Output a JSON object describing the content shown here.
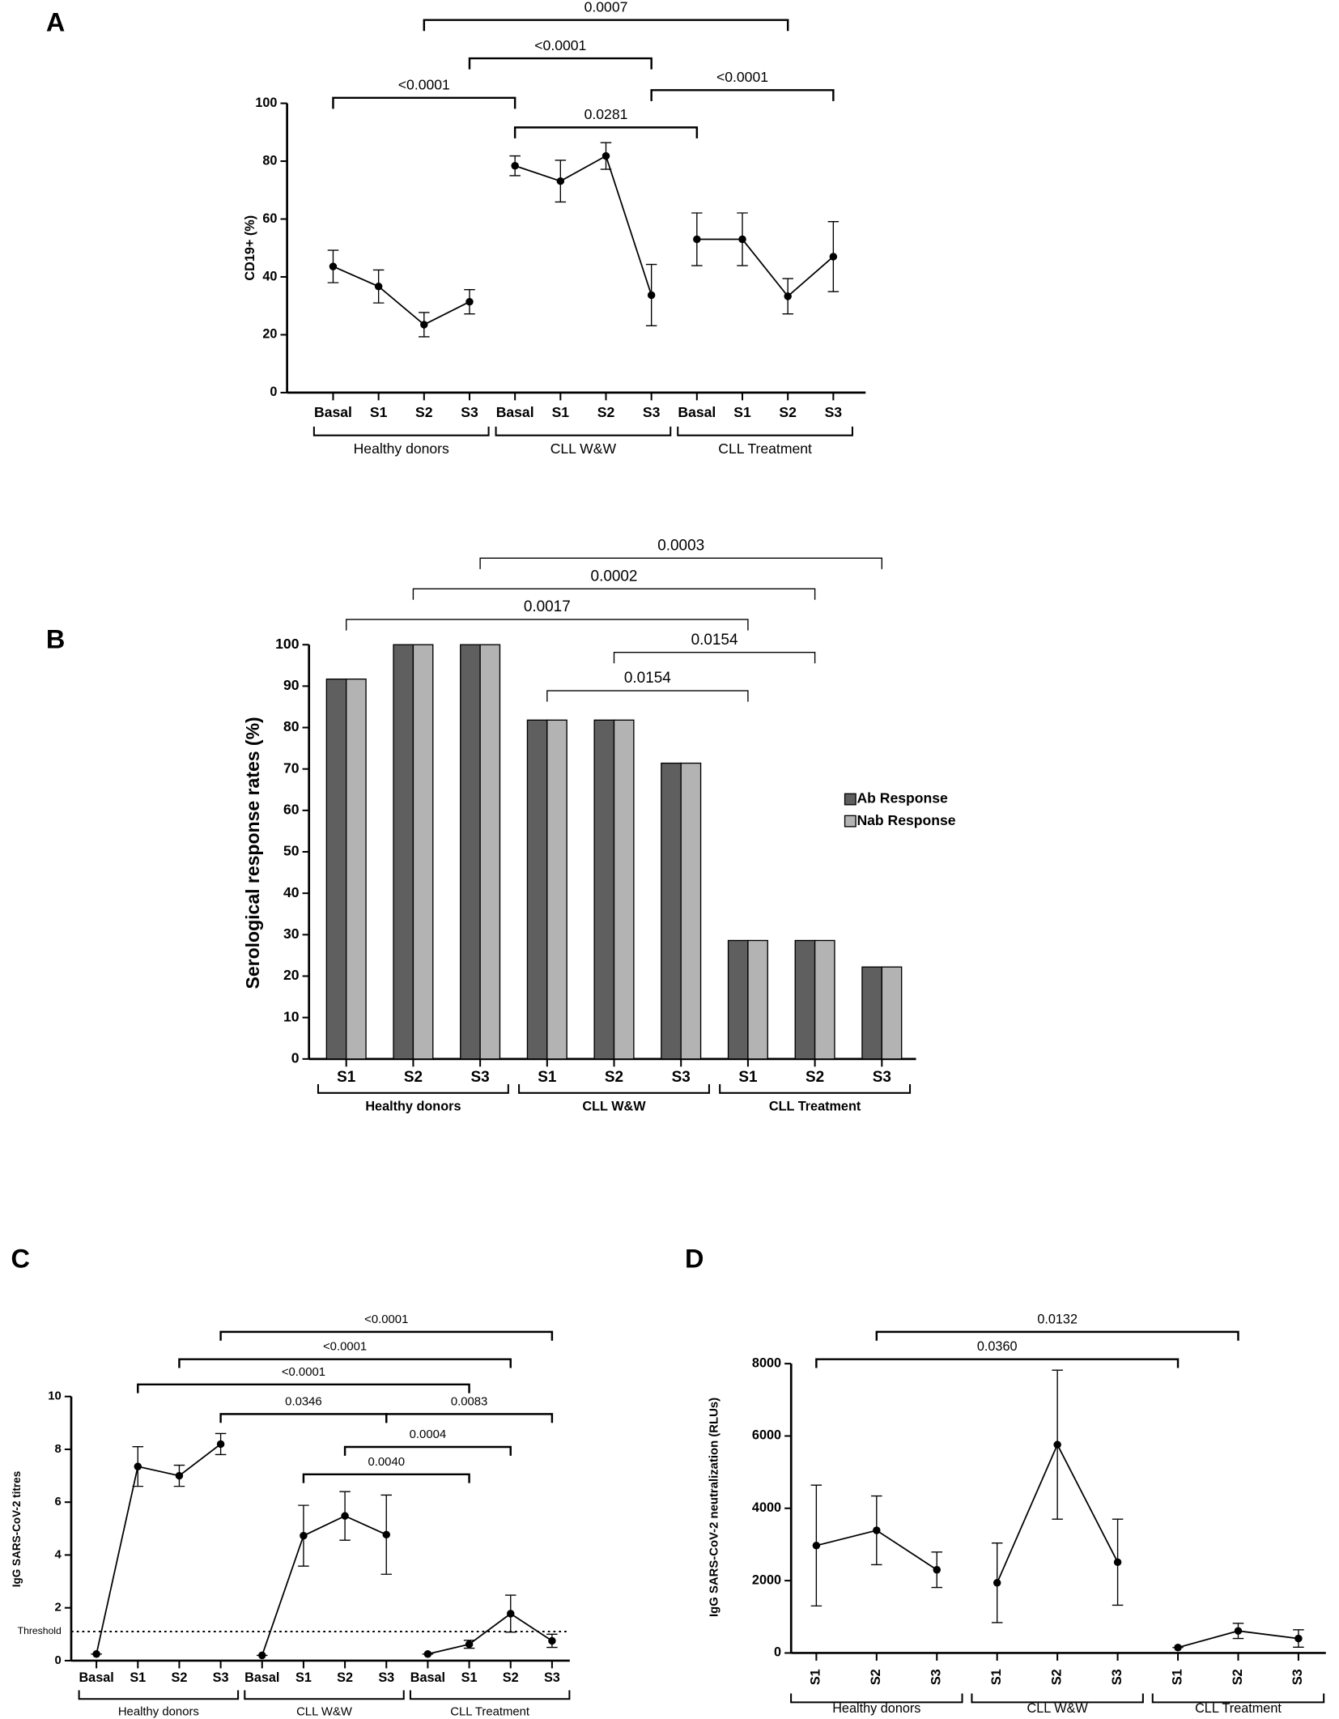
{
  "chart_data": [
    {
      "type": "line",
      "panel": "A",
      "ylabel": "CD19+ (%)",
      "ylim": [
        0,
        100
      ],
      "yticks": [
        0,
        20,
        40,
        60,
        80,
        100
      ],
      "color": "#000000",
      "groups": [
        {
          "name": "Healthy donors",
          "categories": [
            "Basal",
            "S1",
            "S2",
            "S3"
          ],
          "values": [
            43.6,
            36.7,
            23.5,
            31.4
          ],
          "errors": [
            5.6,
            5.7,
            4.2,
            4.2
          ]
        },
        {
          "name": "CLL W&W",
          "categories": [
            "Basal",
            "S1",
            "S2",
            "S3"
          ],
          "values": [
            78.4,
            73.1,
            81.8,
            33.7
          ],
          "errors": [
            3.4,
            7.2,
            4.6,
            10.6
          ]
        },
        {
          "name": "CLL Treatment",
          "categories": [
            "Basal",
            "S1",
            "S2",
            "S3"
          ],
          "values": [
            53,
            53,
            33.3,
            47
          ],
          "errors": [
            9.1,
            9.1,
            6.1,
            12.1
          ]
        }
      ],
      "comparisons": [
        {
          "label": "0.0007",
          "between": [
            2,
            10
          ]
        },
        {
          "label": "<0.0001",
          "between": [
            3,
            7
          ]
        },
        {
          "label": "<0.0001",
          "between": [
            0,
            4
          ]
        },
        {
          "label": "<0.0001",
          "between": [
            7,
            11
          ]
        },
        {
          "label": "0.0281",
          "between": [
            4,
            8
          ]
        }
      ]
    },
    {
      "type": "bar",
      "panel": "B",
      "ylabel": "Serological response rates (%)",
      "ylim": [
        0,
        100
      ],
      "yticks": [
        0,
        10,
        20,
        30,
        40,
        50,
        60,
        70,
        80,
        90,
        100
      ],
      "legend": "right",
      "groups": [
        {
          "name": "Healthy donors",
          "categories": [
            "S1",
            "S2",
            "S3"
          ]
        },
        {
          "name": "CLL W&W",
          "categories": [
            "S1",
            "S2",
            "S3"
          ]
        },
        {
          "name": "CLL Treatment",
          "categories": [
            "S1",
            "S2",
            "S3"
          ]
        }
      ],
      "series": [
        {
          "name": "Ab Response",
          "color": "#5f5f5f",
          "values": [
            91.7,
            100,
            100,
            81.8,
            81.8,
            71.4,
            28.6,
            28.6,
            22.2
          ]
        },
        {
          "name": "Nab Response",
          "color": "#b3b3b3",
          "values": [
            91.7,
            100,
            100,
            81.8,
            81.8,
            71.4,
            28.6,
            28.6,
            22.2
          ]
        }
      ],
      "comparisons": [
        {
          "label": "0.0003",
          "between": [
            2,
            8
          ]
        },
        {
          "label": "0.0002",
          "between": [
            1,
            7
          ]
        },
        {
          "label": "0.0017",
          "between": [
            0,
            6
          ]
        },
        {
          "label": "0.0154",
          "between": [
            4,
            7
          ]
        },
        {
          "label": "0.0154",
          "between": [
            3,
            6
          ]
        }
      ]
    },
    {
      "type": "line",
      "panel": "C",
      "ylabel": "IgG SARS-CoV-2 titres",
      "ylim": [
        0,
        10
      ],
      "yticks": [
        0,
        2,
        4,
        6,
        8,
        10
      ],
      "color": "#000000",
      "threshold": {
        "label": "Threshold",
        "value": 1.1
      },
      "groups": [
        {
          "name": "Healthy donors",
          "categories": [
            "Basal",
            "S1",
            "S2",
            "S3"
          ],
          "values": [
            0.25,
            7.35,
            7.0,
            8.2
          ],
          "errors": [
            0,
            0.75,
            0.4,
            0.4
          ]
        },
        {
          "name": "CLL W&W",
          "categories": [
            "Basal",
            "S1",
            "S2",
            "S3"
          ],
          "values": [
            0.2,
            4.73,
            5.48,
            4.77
          ],
          "errors": [
            0,
            1.15,
            0.92,
            1.5
          ]
        },
        {
          "name": "CLL Treatment",
          "categories": [
            "Basal",
            "S1",
            "S2",
            "S3"
          ],
          "values": [
            0.25,
            0.62,
            1.78,
            0.75
          ],
          "errors": [
            0,
            0.15,
            0.7,
            0.25
          ]
        }
      ],
      "comparisons": [
        {
          "label": "<0.0001",
          "between": [
            3,
            11
          ]
        },
        {
          "label": "<0.0001",
          "between": [
            2,
            10
          ]
        },
        {
          "label": "<0.0001",
          "between": [
            1,
            9
          ]
        },
        {
          "label": "0.0346",
          "between": [
            3,
            7
          ]
        },
        {
          "label": "0.0083",
          "between": [
            7,
            11
          ]
        },
        {
          "label": "0.0004",
          "between": [
            6,
            10
          ]
        },
        {
          "label": "0.0040",
          "between": [
            5,
            9
          ]
        }
      ]
    },
    {
      "type": "line",
      "panel": "D",
      "ylabel": "IgG SARS-CoV-2 neutralization (RLUs)",
      "ylim": [
        0,
        8000
      ],
      "yticks": [
        0,
        2000,
        4000,
        6000,
        8000
      ],
      "color": "#000000",
      "groups": [
        {
          "name": "Healthy donors",
          "categories": [
            "S1",
            "S2",
            "S3"
          ],
          "values": [
            2970,
            3390,
            2300
          ],
          "errors": [
            1670,
            950,
            490
          ]
        },
        {
          "name": "CLL W&W",
          "categories": [
            "S1",
            "S2",
            "S3"
          ],
          "values": [
            1940,
            5760,
            2510
          ],
          "errors": [
            1100,
            2060,
            1190
          ]
        },
        {
          "name": "CLL Treatment",
          "categories": [
            "S1",
            "S2",
            "S3"
          ],
          "values": [
            150,
            610,
            400
          ],
          "errors": [
            0,
            210,
            240
          ]
        }
      ],
      "comparisons": [
        {
          "label": "0.0132",
          "between": [
            1,
            7
          ]
        },
        {
          "label": "0.0360",
          "between": [
            0,
            6
          ]
        }
      ]
    }
  ]
}
